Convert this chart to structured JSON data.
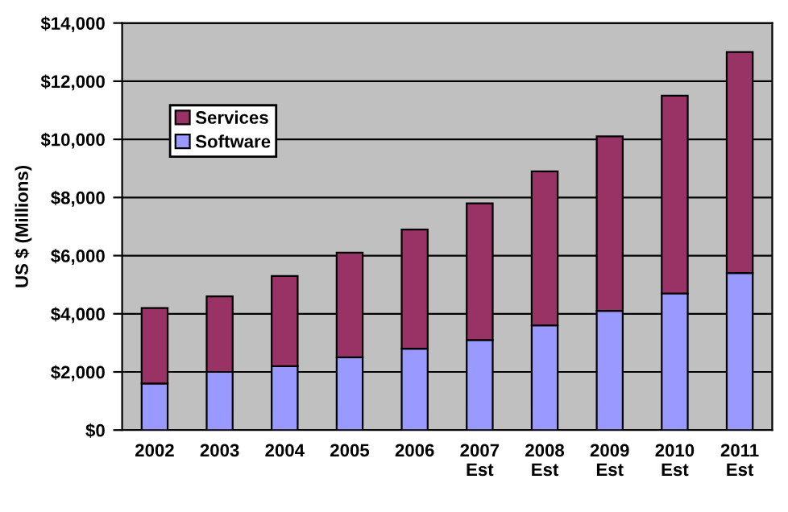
{
  "chart_data": {
    "type": "bar",
    "stacked": true,
    "ylabel": "US $ (Millions)",
    "categories": [
      "2002",
      "2003",
      "2004",
      "2005",
      "2006",
      "2007\nEst",
      "2008\nEst",
      "2009\nEst",
      "2010\nEst",
      "2011\nEst"
    ],
    "series": [
      {
        "name": "Software",
        "color": "#9999ff",
        "values": [
          1600,
          2000,
          2200,
          2500,
          2800,
          3100,
          3600,
          4100,
          4700,
          5400
        ]
      },
      {
        "name": "Services",
        "color": "#993366",
        "values": [
          2600,
          2600,
          3100,
          3600,
          4100,
          4700,
          5300,
          6000,
          6800,
          7600
        ]
      }
    ],
    "ylim": [
      0,
      14000
    ],
    "yticks": [
      {
        "value": 0,
        "label": "$0"
      },
      {
        "value": 2000,
        "label": "$2,000"
      },
      {
        "value": 4000,
        "label": "$4,000"
      },
      {
        "value": 6000,
        "label": "$6,000"
      },
      {
        "value": 8000,
        "label": "$8,000"
      },
      {
        "value": 10000,
        "label": "$10,000"
      },
      {
        "value": 12000,
        "label": "$12,000"
      },
      {
        "value": 14000,
        "label": "$14,000"
      }
    ],
    "grid": "y",
    "legend": "upper left"
  }
}
